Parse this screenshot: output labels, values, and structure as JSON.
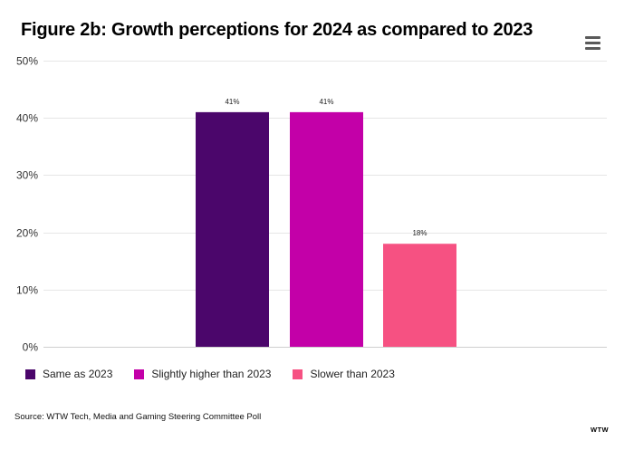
{
  "title": "Figure 2b: Growth perceptions for 2024 as compared to 2023",
  "menu": {
    "icon": "hamburger-menu-icon"
  },
  "chart_data": {
    "type": "bar",
    "title": "Figure 2b: Growth perceptions for 2024 as compared to 2023",
    "xlabel": "",
    "ylabel": "",
    "ylim": [
      0,
      50
    ],
    "y_ticks": [
      0,
      10,
      20,
      30,
      40,
      50
    ],
    "y_tick_labels": [
      "0%",
      "10%",
      "20%",
      "30%",
      "40%",
      "50%"
    ],
    "grid": true,
    "legend_position": "bottom-left",
    "series": [
      {
        "name": "Same as 2023",
        "value": 41,
        "label": "41%",
        "color": "#4b066b"
      },
      {
        "name": "Slightly higher than 2023",
        "value": 41,
        "label": "41%",
        "color": "#c300a8"
      },
      {
        "name": "Slower than 2023",
        "value": 18,
        "label": "18%",
        "color": "#f65182"
      }
    ]
  },
  "source": "Source: WTW Tech, Media and Gaming Steering Committee Poll",
  "logo": "WTW"
}
